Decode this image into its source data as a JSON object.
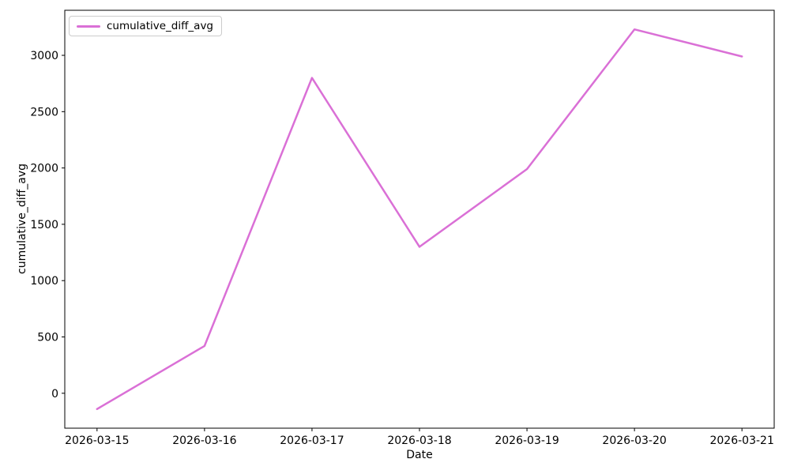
{
  "figure": {
    "background_color": "#ffffff",
    "axis_color": "#000000",
    "text_color": "#000000",
    "legend_border_color": "#cccccc"
  },
  "chart_data": {
    "type": "line",
    "title": "",
    "xlabel": "Date",
    "ylabel": "cumulative_diff_avg",
    "categories": [
      "2026-03-15",
      "2026-03-16",
      "2026-03-17",
      "2026-03-18",
      "2026-03-19",
      "2026-03-20",
      "2026-03-21"
    ],
    "series": [
      {
        "name": "cumulative_diff_avg",
        "values": [
          -140,
          420,
          2800,
          1300,
          1990,
          3230,
          2990
        ],
        "color": "#da70d6",
        "line_width": 2.5
      }
    ],
    "y_ticks": [
      0,
      500,
      1000,
      1500,
      2000,
      2500,
      3000
    ],
    "ylim": [
      -310,
      3400
    ],
    "x_index_range": [
      -0.3,
      6.3
    ],
    "grid": false,
    "legend": {
      "position": "upper-left",
      "entries": [
        {
          "label": "cumulative_diff_avg",
          "color": "#da70d6"
        }
      ]
    }
  }
}
